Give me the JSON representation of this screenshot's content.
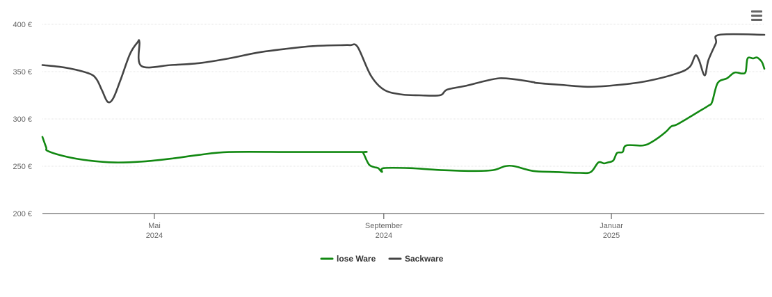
{
  "menu": {
    "icon": "hamburger-menu-icon"
  },
  "chart_data": {
    "type": "line",
    "title": "",
    "xlabel": "",
    "ylabel": "",
    "ylim": [
      200,
      400
    ],
    "y_ticks": [
      200,
      250,
      300,
      350,
      400
    ],
    "y_tick_labels": [
      "200 €",
      "250 €",
      "300 €",
      "350 €",
      "400 €"
    ],
    "x_range": [
      "2024-03-02",
      "2025-03-24"
    ],
    "x_ticks": [
      {
        "date": "2024-05-01",
        "month": "Mai",
        "year": "2024"
      },
      {
        "date": "2024-09-01",
        "month": "September",
        "year": "2024"
      },
      {
        "date": "2025-01-01",
        "month": "Januar",
        "year": "2025"
      }
    ],
    "grid": true,
    "legend_position": "bottom-center",
    "series": [
      {
        "name": "lose Ware",
        "color": "#118811",
        "points": [
          [
            "2024-03-02",
            281
          ],
          [
            "2024-03-04",
            270
          ],
          [
            "2024-03-05",
            266
          ],
          [
            "2024-03-15",
            260
          ],
          [
            "2024-03-27",
            256
          ],
          [
            "2024-04-10",
            254
          ],
          [
            "2024-04-25",
            255
          ],
          [
            "2024-05-10",
            258
          ],
          [
            "2024-05-25",
            262
          ],
          [
            "2024-06-10",
            265
          ],
          [
            "2024-07-15",
            265
          ],
          [
            "2024-08-20",
            265
          ],
          [
            "2024-08-21",
            264
          ],
          [
            "2024-08-24",
            252
          ],
          [
            "2024-08-27",
            249
          ],
          [
            "2024-08-29",
            248
          ],
          [
            "2024-08-31",
            244
          ],
          [
            "2024-09-01",
            248
          ],
          [
            "2024-09-15",
            248
          ],
          [
            "2024-10-01",
            246
          ],
          [
            "2024-10-20",
            245
          ],
          [
            "2024-10-30",
            246
          ],
          [
            "2024-11-05",
            250
          ],
          [
            "2024-11-10",
            250
          ],
          [
            "2024-11-20",
            245
          ],
          [
            "2024-12-01",
            244
          ],
          [
            "2024-12-15",
            243
          ],
          [
            "2024-12-21",
            244
          ],
          [
            "2024-12-25",
            254
          ],
          [
            "2024-12-28",
            253
          ],
          [
            "2024-12-30",
            254
          ],
          [
            "2025-01-02",
            256
          ],
          [
            "2025-01-04",
            264
          ],
          [
            "2025-01-07",
            265
          ],
          [
            "2025-01-09",
            272
          ],
          [
            "2025-01-18",
            272
          ],
          [
            "2025-01-23",
            276
          ],
          [
            "2025-01-30",
            286
          ],
          [
            "2025-02-02",
            292
          ],
          [
            "2025-02-05",
            294
          ],
          [
            "2025-02-12",
            302
          ],
          [
            "2025-02-17",
            308
          ],
          [
            "2025-02-22",
            314
          ],
          [
            "2025-02-24",
            318
          ],
          [
            "2025-02-27",
            338
          ],
          [
            "2025-03-04",
            343
          ],
          [
            "2025-03-08",
            349
          ],
          [
            "2025-03-12",
            348
          ],
          [
            "2025-03-14",
            350
          ],
          [
            "2025-03-15",
            364
          ],
          [
            "2025-03-18",
            364
          ],
          [
            "2025-03-20",
            365
          ],
          [
            "2025-03-22",
            362
          ],
          [
            "2025-03-23",
            359
          ],
          [
            "2025-03-24",
            353
          ]
        ]
      },
      {
        "name": "Sackware",
        "color": "#444444",
        "points": [
          [
            "2024-03-02",
            357
          ],
          [
            "2024-03-15",
            354
          ],
          [
            "2024-03-27",
            348
          ],
          [
            "2024-03-31",
            342
          ],
          [
            "2024-04-03",
            330
          ],
          [
            "2024-04-06",
            318
          ],
          [
            "2024-04-09",
            322
          ],
          [
            "2024-04-13",
            342
          ],
          [
            "2024-04-18",
            369
          ],
          [
            "2024-04-22",
            381
          ],
          [
            "2024-04-23",
            381
          ],
          [
            "2024-04-24",
            356
          ],
          [
            "2024-05-10",
            357
          ],
          [
            "2024-05-25",
            359
          ],
          [
            "2024-06-10",
            364
          ],
          [
            "2024-06-25",
            370
          ],
          [
            "2024-07-10",
            374
          ],
          [
            "2024-07-25",
            377
          ],
          [
            "2024-08-10",
            378
          ],
          [
            "2024-08-14",
            378
          ],
          [
            "2024-08-18",
            376
          ],
          [
            "2024-08-25",
            346
          ],
          [
            "2024-09-01",
            331
          ],
          [
            "2024-09-10",
            326
          ],
          [
            "2024-09-20",
            325
          ],
          [
            "2024-10-01",
            325
          ],
          [
            "2024-10-05",
            331
          ],
          [
            "2024-10-15",
            335
          ],
          [
            "2024-10-25",
            340
          ],
          [
            "2024-11-02",
            343
          ],
          [
            "2024-11-10",
            342
          ],
          [
            "2024-11-20",
            339
          ],
          [
            "2024-11-22",
            338
          ],
          [
            "2024-12-05",
            336
          ],
          [
            "2024-12-20",
            334
          ],
          [
            "2025-01-05",
            336
          ],
          [
            "2025-01-20",
            340
          ],
          [
            "2025-02-05",
            348
          ],
          [
            "2025-02-12",
            355
          ],
          [
            "2025-02-15",
            367
          ],
          [
            "2025-02-17",
            362
          ],
          [
            "2025-02-20",
            346
          ],
          [
            "2025-02-22",
            362
          ],
          [
            "2025-02-26",
            380
          ],
          [
            "2025-02-28",
            389
          ],
          [
            "2025-03-24",
            389
          ]
        ]
      }
    ]
  }
}
